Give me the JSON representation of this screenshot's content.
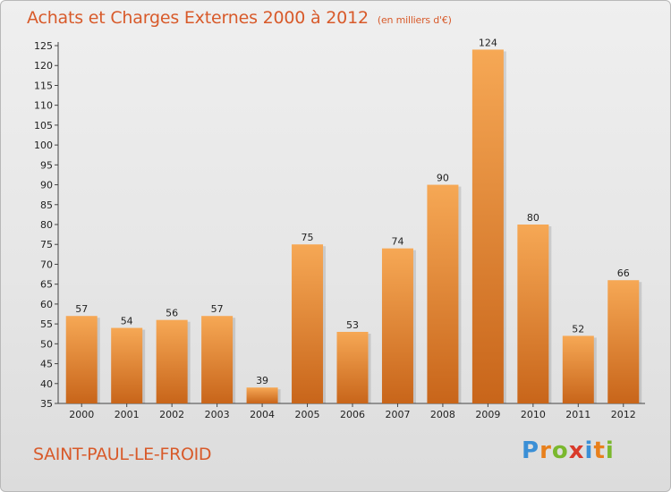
{
  "header": {
    "title": "Achats et Charges Externes 2000 à 2012",
    "unit": "(en milliers d'€)"
  },
  "footer": {
    "commune": "SAINT-PAUL-LE-FROID",
    "logo": "Proxiti"
  },
  "colors": {
    "accent": "#d85a2a",
    "bar_top": "#f6a855",
    "bar_bottom": "#c8651a"
  },
  "chart_data": {
    "type": "bar",
    "title": "Achats et Charges Externes 2000 à 2012",
    "subtitle": "(en milliers d'€)",
    "categories": [
      "2000",
      "2001",
      "2002",
      "2003",
      "2004",
      "2005",
      "2006",
      "2007",
      "2008",
      "2009",
      "2010",
      "2011",
      "2012"
    ],
    "values": [
      57,
      54,
      56,
      57,
      39,
      75,
      53,
      74,
      90,
      124,
      80,
      52,
      66
    ],
    "ylim": [
      35,
      125
    ],
    "yticks": [
      35,
      40,
      45,
      50,
      55,
      60,
      65,
      70,
      75,
      80,
      85,
      90,
      95,
      100,
      105,
      110,
      115,
      120,
      125
    ],
    "grid": false,
    "xlabel": "",
    "ylabel": ""
  }
}
